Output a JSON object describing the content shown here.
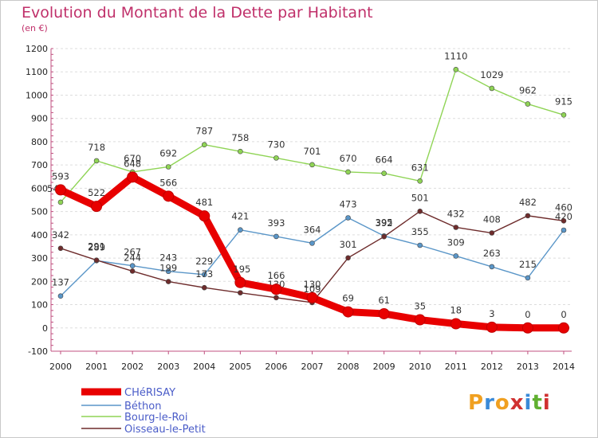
{
  "header": {
    "title": "Evolution du Montant de la Dette par Habitant",
    "unit": "(en €)"
  },
  "brand": {
    "letters": [
      "P",
      "r",
      "o",
      "x",
      "i",
      "t",
      "i"
    ],
    "colors": [
      "#f0a020",
      "#3a8ad8",
      "#f0a020",
      "#d03030",
      "#3a8ad8",
      "#60b030",
      "#d03030"
    ]
  },
  "chart_data": {
    "type": "line",
    "title": "Evolution du Montant de la Dette par Habitant",
    "ylabel": "(en €)",
    "xlabel": "",
    "x": [
      "2000",
      "2001",
      "2002",
      "2003",
      "2004",
      "2005",
      "2006",
      "2007",
      "2008",
      "2009",
      "2010",
      "2011",
      "2012",
      "2013",
      "2014"
    ],
    "ylim": [
      -100,
      1200
    ],
    "yticks": [
      -100,
      0,
      100,
      200,
      300,
      400,
      500,
      600,
      700,
      800,
      900,
      1000,
      1100,
      1200
    ],
    "grid": "horizontal",
    "legend": "bottom-left",
    "series": [
      {
        "name": "CHéRISAY",
        "color": "#e80000",
        "values": [
          593,
          522,
          648,
          566,
          481,
          195,
          166,
          130,
          69,
          61,
          35,
          18,
          3,
          0,
          0
        ],
        "labels": [
          "593",
          "522",
          "648",
          "566",
          "481",
          "195",
          "166",
          "130",
          "69",
          "61",
          "35",
          "18",
          "3",
          "0",
          "0"
        ]
      },
      {
        "name": "Béthon",
        "color": "#5a96c8",
        "values": [
          137,
          289,
          267,
          243,
          229,
          421,
          393,
          364,
          473,
          395,
          355,
          309,
          263,
          215,
          420
        ],
        "labels": [
          "137",
          "289",
          "267",
          "243",
          "229",
          "421",
          "393",
          "364",
          "473",
          "395",
          "355",
          "309",
          "263",
          "215",
          "420"
        ]
      },
      {
        "name": "Bourg-le-Roi",
        "color": "#8fd455",
        "values": [
          540,
          718,
          670,
          692,
          787,
          758,
          730,
          701,
          670,
          664,
          631,
          1110,
          1029,
          962,
          915
        ],
        "labels": [
          "540",
          "718",
          "670",
          "692",
          "787",
          "758",
          "730",
          "701",
          "670",
          "664",
          "631",
          "1110",
          "1029",
          "962",
          "915"
        ]
      },
      {
        "name": "Oisseau-le-Petit",
        "color": "#6e2c2c",
        "values": [
          342,
          291,
          244,
          199,
          173,
          151,
          130,
          109,
          301,
          392,
          501,
          432,
          408,
          482,
          460
        ],
        "labels": [
          "342",
          "291",
          "244",
          "199",
          "173",
          "",
          "130",
          "109",
          "301",
          "392",
          "501",
          "432",
          "408",
          "482",
          "460"
        ]
      }
    ]
  }
}
